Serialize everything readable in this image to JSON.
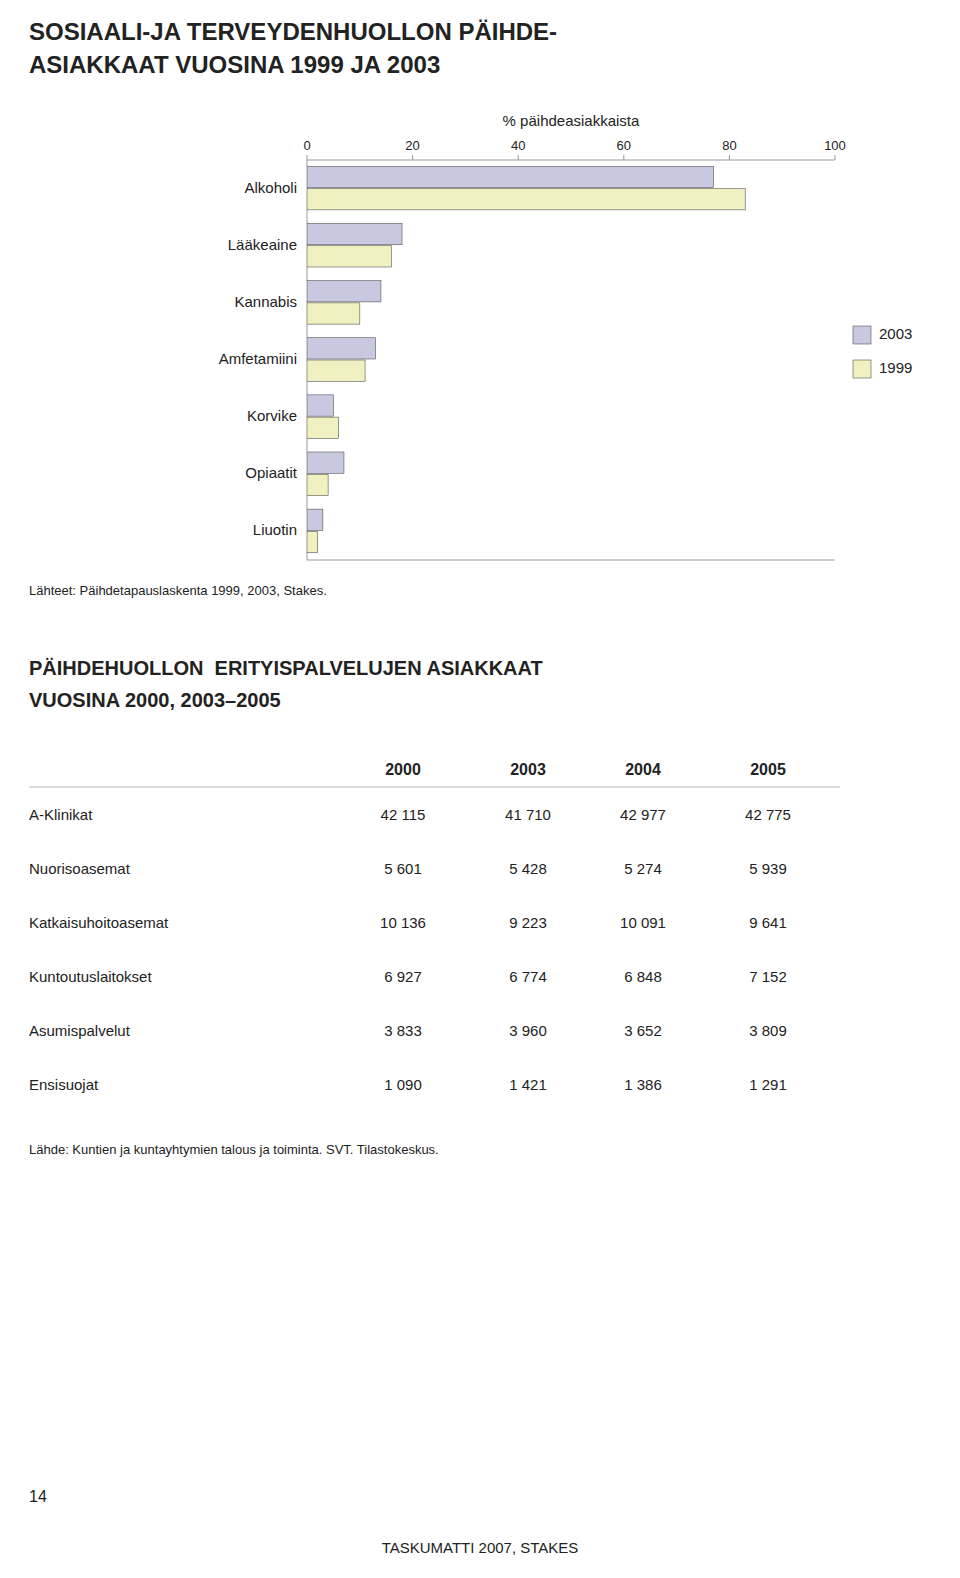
{
  "chart_data": {
    "type": "bar",
    "orientation": "horizontal",
    "title": "SOSIAALI-JA TERVEYDENHUOLLON PÄIHDE-\nASIAKKAAT VUOSINA 1999 JA 2003",
    "categories": [
      "Alkoholi",
      "Lääkeaine",
      "Kannabis",
      "Amfetamiini",
      "Korvike",
      "Opiaatit",
      "Liuotin"
    ],
    "series": [
      {
        "name": "2003",
        "color": "#c8c8e0",
        "values": [
          77,
          18,
          14,
          13,
          5,
          7,
          3
        ]
      },
      {
        "name": "1999",
        "color": "#f0f0c0",
        "values": [
          83,
          16,
          10,
          11,
          6,
          4,
          2
        ]
      }
    ],
    "xlabel": "% päihdeasiakkaista",
    "xlim": [
      0,
      100
    ],
    "xticks": [
      0,
      20,
      40,
      60,
      80,
      100
    ],
    "grid": false,
    "legend": "right",
    "source": "Lähteet: Päihdetapauslaskenta 1999, 2003, Stakes."
  },
  "table": {
    "title": "PÄIHDEHUOLLON  ERITYISPALVELUJEN ASIAKKAAT\nVUOSINA 2000, 2003–2005",
    "columns": [
      "2000",
      "2003",
      "2004",
      "2005"
    ],
    "rows": [
      {
        "label": "A-Klinikat",
        "cells": [
          "42 115",
          "41 710",
          "42 977",
          "42 775"
        ]
      },
      {
        "label": "Nuorisoasemat",
        "cells": [
          "5 601",
          "5 428",
          "5 274",
          "5 939"
        ]
      },
      {
        "label": "Katkaisuhoitoasemat",
        "cells": [
          "10 136",
          "9 223",
          "10 091",
          "9 641"
        ]
      },
      {
        "label": "Kuntoutuslaitokset",
        "cells": [
          "6 927",
          "6 774",
          "6 848",
          "7 152"
        ]
      },
      {
        "label": "Asumispalvelut",
        "cells": [
          "3 833",
          "3 960",
          "3 652",
          "3 809"
        ]
      },
      {
        "label": "Ensisuojat",
        "cells": [
          "1 090",
          "1 421",
          "1 386",
          "1 291"
        ]
      }
    ],
    "source": "Lähde: Kuntien ja kuntayhtymien talous ja toiminta. SVT. Tilastokeskus."
  },
  "page_number": "14",
  "footer": "TASKUMATTI 2007, STAKES"
}
